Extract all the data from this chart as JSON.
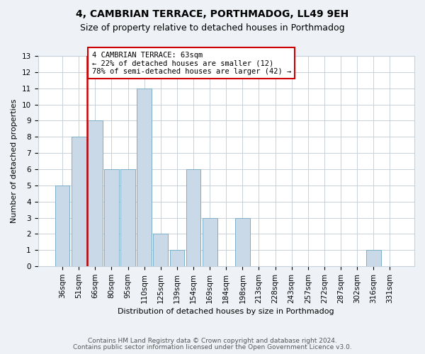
{
  "title1": "4, CAMBRIAN TERRACE, PORTHMADOG, LL49 9EH",
  "title2": "Size of property relative to detached houses in Porthmadog",
  "xlabel": "Distribution of detached houses by size in Porthmadog",
  "ylabel": "Number of detached properties",
  "categories": [
    "36sqm",
    "51sqm",
    "66sqm",
    "80sqm",
    "95sqm",
    "110sqm",
    "125sqm",
    "139sqm",
    "154sqm",
    "169sqm",
    "184sqm",
    "198sqm",
    "213sqm",
    "228sqm",
    "243sqm",
    "257sqm",
    "272sqm",
    "287sqm",
    "302sqm",
    "316sqm",
    "331sqm"
  ],
  "values": [
    5,
    8,
    9,
    6,
    6,
    11,
    2,
    1,
    6,
    3,
    0,
    3,
    0,
    0,
    0,
    0,
    0,
    0,
    0,
    1,
    0
  ],
  "bar_color": "#c9d9e8",
  "bar_edge_color": "#7bafc8",
  "vline_x_index": 1.5,
  "vline_color": "#cc0000",
  "annotation_text": "4 CAMBRIAN TERRACE: 63sqm\n← 22% of detached houses are smaller (12)\n78% of semi-detached houses are larger (42) →",
  "annotation_box_color": "white",
  "annotation_box_edge_color": "#cc0000",
  "ylim": [
    0,
    13
  ],
  "yticks": [
    0,
    1,
    2,
    3,
    4,
    5,
    6,
    7,
    8,
    9,
    10,
    11,
    12,
    13
  ],
  "footer1": "Contains HM Land Registry data © Crown copyright and database right 2024.",
  "footer2": "Contains public sector information licensed under the Open Government Licence v3.0.",
  "bg_color": "#eef2f7",
  "plot_bg_color": "#ffffff",
  "grid_color": "#c8d0da",
  "title1_fontsize": 10,
  "title2_fontsize": 9,
  "xlabel_fontsize": 8,
  "ylabel_fontsize": 8,
  "tick_fontsize": 7.5,
  "annotation_fontsize": 7.5,
  "footer_fontsize": 6.5
}
